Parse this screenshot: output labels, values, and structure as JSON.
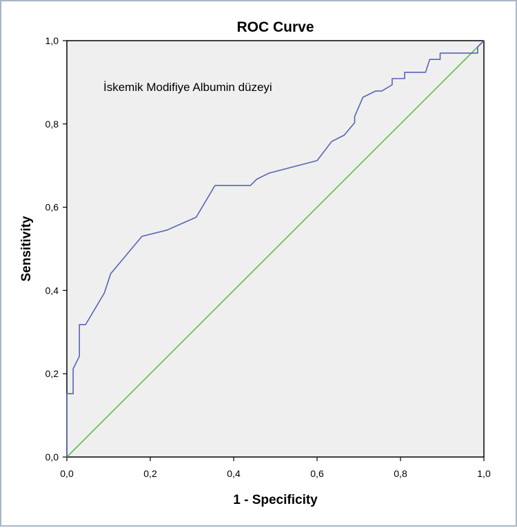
{
  "chart_data": {
    "type": "line",
    "title": "ROC Curve",
    "xlabel": "1 - Specificity",
    "ylabel": "Sensitivity",
    "xlim": [
      0,
      1
    ],
    "ylim": [
      0,
      1
    ],
    "x_ticks": [
      "0,0",
      "0,2",
      "0,4",
      "0,6",
      "0,8",
      "1,0"
    ],
    "y_ticks": [
      "0,0",
      "0,2",
      "0,4",
      "0,6",
      "0,8",
      "1,0"
    ],
    "annotation": "İskemik Modifiye Albumin düzeyi",
    "grid": false,
    "background": "#efefef",
    "series": [
      {
        "color": "#5464b4",
        "x": [
          0.0,
          0.0,
          0.015,
          0.015,
          0.03,
          0.03,
          0.045,
          0.09,
          0.105,
          0.18,
          0.24,
          0.31,
          0.355,
          0.44,
          0.455,
          0.485,
          0.6,
          0.635,
          0.665,
          0.69,
          0.69,
          0.71,
          0.74,
          0.755,
          0.78,
          0.78,
          0.81,
          0.81,
          0.835,
          0.86,
          0.87,
          0.895,
          0.895,
          0.985,
          0.985,
          1.0
        ],
        "y": [
          0.0,
          0.152,
          0.152,
          0.212,
          0.242,
          0.318,
          0.318,
          0.394,
          0.44,
          0.53,
          0.545,
          0.576,
          0.652,
          0.652,
          0.667,
          0.682,
          0.712,
          0.758,
          0.773,
          0.803,
          0.818,
          0.864,
          0.879,
          0.879,
          0.894,
          0.909,
          0.909,
          0.924,
          0.924,
          0.924,
          0.955,
          0.955,
          0.97,
          0.97,
          0.985,
          1.0
        ]
      },
      {
        "color": "#5ebd48",
        "x": [
          0,
          1
        ],
        "y": [
          0,
          1
        ]
      }
    ]
  }
}
